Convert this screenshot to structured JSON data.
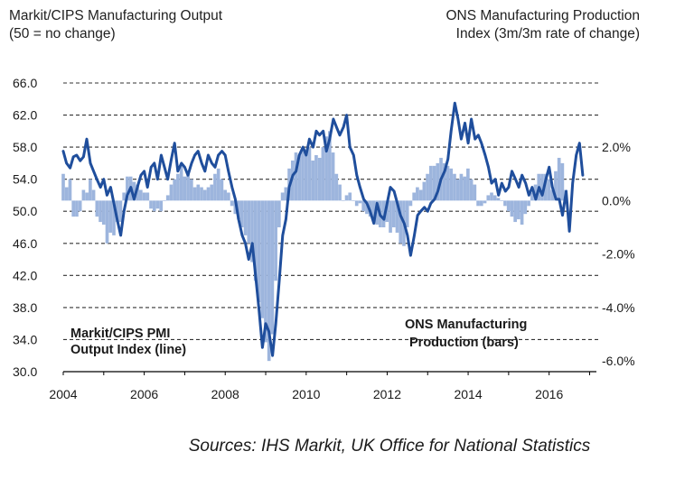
{
  "header": {
    "left_line1": "Markit/CIPS Manufacturing Output",
    "left_line2": "(50 = no change)",
    "right_line1": "ONS Manufacturing Production",
    "right_line2": "Index (3m/3m rate of change)"
  },
  "source": "Sources: IHS Markit, UK Office for National Statistics",
  "chart_data": {
    "type": "bar+line",
    "title": "Markit/CIPS Manufacturing Output vs ONS Manufacturing Production",
    "x_range": [
      2004,
      2016.9
    ],
    "x_ticks": [
      "2004",
      "2006",
      "2008",
      "2010",
      "2012",
      "2014",
      "2016"
    ],
    "y_left": {
      "label": "Markit/CIPS Manufacturing Output (50 = no change)",
      "range": [
        30,
        66
      ],
      "ticks": [
        "66.0",
        "62.0",
        "58.0",
        "54.0",
        "50.0",
        "46.0",
        "42.0",
        "38.0",
        "34.0",
        "30.0"
      ]
    },
    "y_right": {
      "label": "ONS Manufacturing Production Index (3m/3m rate of change)",
      "range": [
        -6.4,
        4.4
      ],
      "ticks": [
        "2.0%",
        "0.0%",
        "-2.0%",
        "-4.0%",
        "-6.0%"
      ]
    },
    "grid": "dashed horizontal",
    "annotations": {
      "line_label_1": "Markit/CIPS PMI",
      "line_label_2": "Output Index (line)",
      "bars_label_1": "ONS Manufacturing",
      "bars_label_2": "Production (bars)"
    },
    "series": [
      {
        "name": "Markit/CIPS PMI Output Index",
        "kind": "line",
        "axis": "left",
        "color": "#1f4e9c",
        "points": [
          [
            2004.0,
            57.5
          ],
          [
            2004.08,
            56.0
          ],
          [
            2004.17,
            55.4
          ],
          [
            2004.25,
            56.8
          ],
          [
            2004.33,
            57.0
          ],
          [
            2004.42,
            56.3
          ],
          [
            2004.5,
            56.8
          ],
          [
            2004.58,
            59.0
          ],
          [
            2004.67,
            56.0
          ],
          [
            2004.75,
            55.0
          ],
          [
            2004.83,
            54.0
          ],
          [
            2004.92,
            53.0
          ],
          [
            2005.0,
            54.0
          ],
          [
            2005.08,
            52.0
          ],
          [
            2005.17,
            53.0
          ],
          [
            2005.25,
            51.0
          ],
          [
            2005.33,
            49.0
          ],
          [
            2005.42,
            47.0
          ],
          [
            2005.5,
            50.0
          ],
          [
            2005.58,
            52.0
          ],
          [
            2005.67,
            53.0
          ],
          [
            2005.75,
            51.5
          ],
          [
            2005.83,
            53.0
          ],
          [
            2005.92,
            54.5
          ],
          [
            2006.0,
            55.0
          ],
          [
            2006.08,
            53.0
          ],
          [
            2006.17,
            55.5
          ],
          [
            2006.25,
            56.0
          ],
          [
            2006.33,
            54.0
          ],
          [
            2006.42,
            57.0
          ],
          [
            2006.5,
            55.5
          ],
          [
            2006.58,
            54.0
          ],
          [
            2006.67,
            56.5
          ],
          [
            2006.75,
            58.5
          ],
          [
            2006.83,
            55.0
          ],
          [
            2006.92,
            56.0
          ],
          [
            2007.0,
            55.5
          ],
          [
            2007.08,
            54.5
          ],
          [
            2007.17,
            56.0
          ],
          [
            2007.25,
            57.0
          ],
          [
            2007.33,
            57.5
          ],
          [
            2007.42,
            56.0
          ],
          [
            2007.5,
            55.0
          ],
          [
            2007.58,
            57.0
          ],
          [
            2007.67,
            56.0
          ],
          [
            2007.75,
            55.5
          ],
          [
            2007.83,
            57.0
          ],
          [
            2007.92,
            57.5
          ],
          [
            2008.0,
            57.0
          ],
          [
            2008.08,
            55.0
          ],
          [
            2008.17,
            53.0
          ],
          [
            2008.25,
            51.5
          ],
          [
            2008.33,
            49.0
          ],
          [
            2008.42,
            47.0
          ],
          [
            2008.5,
            46.0
          ],
          [
            2008.58,
            44.0
          ],
          [
            2008.67,
            46.0
          ],
          [
            2008.75,
            42.0
          ],
          [
            2008.83,
            38.0
          ],
          [
            2008.92,
            33.0
          ],
          [
            2009.0,
            36.0
          ],
          [
            2009.08,
            35.0
          ],
          [
            2009.17,
            32.0
          ],
          [
            2009.25,
            36.0
          ],
          [
            2009.33,
            41.0
          ],
          [
            2009.42,
            47.0
          ],
          [
            2009.5,
            49.0
          ],
          [
            2009.58,
            53.0
          ],
          [
            2009.67,
            54.5
          ],
          [
            2009.75,
            55.0
          ],
          [
            2009.83,
            57.0
          ],
          [
            2009.92,
            58.0
          ],
          [
            2010.0,
            57.0
          ],
          [
            2010.08,
            59.0
          ],
          [
            2010.17,
            58.0
          ],
          [
            2010.25,
            60.0
          ],
          [
            2010.33,
            59.5
          ],
          [
            2010.42,
            60.0
          ],
          [
            2010.5,
            57.5
          ],
          [
            2010.58,
            59.0
          ],
          [
            2010.67,
            61.5
          ],
          [
            2010.75,
            60.5
          ],
          [
            2010.83,
            59.5
          ],
          [
            2010.92,
            60.5
          ],
          [
            2011.0,
            62.0
          ],
          [
            2011.08,
            58.0
          ],
          [
            2011.17,
            57.0
          ],
          [
            2011.25,
            54.5
          ],
          [
            2011.33,
            53.0
          ],
          [
            2011.42,
            51.5
          ],
          [
            2011.5,
            51.0
          ],
          [
            2011.58,
            50.0
          ],
          [
            2011.67,
            48.5
          ],
          [
            2011.75,
            51.0
          ],
          [
            2011.83,
            49.5
          ],
          [
            2011.92,
            49.0
          ],
          [
            2012.0,
            51.0
          ],
          [
            2012.08,
            53.0
          ],
          [
            2012.17,
            52.5
          ],
          [
            2012.25,
            51.0
          ],
          [
            2012.33,
            49.5
          ],
          [
            2012.42,
            48.5
          ],
          [
            2012.5,
            47.0
          ],
          [
            2012.58,
            44.5
          ],
          [
            2012.67,
            47.0
          ],
          [
            2012.75,
            49.5
          ],
          [
            2012.83,
            50.0
          ],
          [
            2012.92,
            50.5
          ],
          [
            2013.0,
            50.0
          ],
          [
            2013.08,
            51.0
          ],
          [
            2013.17,
            51.5
          ],
          [
            2013.25,
            52.5
          ],
          [
            2013.33,
            54.0
          ],
          [
            2013.42,
            55.0
          ],
          [
            2013.5,
            56.5
          ],
          [
            2013.58,
            60.0
          ],
          [
            2013.67,
            63.5
          ],
          [
            2013.75,
            61.5
          ],
          [
            2013.83,
            59.0
          ],
          [
            2013.92,
            61.0
          ],
          [
            2014.0,
            58.5
          ],
          [
            2014.08,
            61.5
          ],
          [
            2014.17,
            59.0
          ],
          [
            2014.25,
            59.5
          ],
          [
            2014.33,
            58.5
          ],
          [
            2014.42,
            57.0
          ],
          [
            2014.5,
            55.5
          ],
          [
            2014.58,
            53.5
          ],
          [
            2014.67,
            54.0
          ],
          [
            2014.75,
            52.0
          ],
          [
            2014.83,
            53.5
          ],
          [
            2014.92,
            52.5
          ],
          [
            2015.0,
            53.0
          ],
          [
            2015.08,
            55.0
          ],
          [
            2015.17,
            54.0
          ],
          [
            2015.25,
            53.0
          ],
          [
            2015.33,
            54.5
          ],
          [
            2015.42,
            53.5
          ],
          [
            2015.5,
            52.0
          ],
          [
            2015.58,
            53.0
          ],
          [
            2015.67,
            51.5
          ],
          [
            2015.75,
            53.0
          ],
          [
            2015.83,
            52.0
          ],
          [
            2015.92,
            54.0
          ],
          [
            2016.0,
            55.5
          ],
          [
            2016.08,
            53.0
          ],
          [
            2016.17,
            51.5
          ],
          [
            2016.25,
            51.5
          ],
          [
            2016.33,
            49.5
          ],
          [
            2016.42,
            52.5
          ],
          [
            2016.5,
            47.5
          ],
          [
            2016.58,
            53.5
          ],
          [
            2016.67,
            57.0
          ],
          [
            2016.75,
            58.5
          ],
          [
            2016.83,
            54.5
          ]
        ]
      },
      {
        "name": "ONS Manufacturing Production (3m/3m %)",
        "kind": "bars",
        "axis": "right",
        "color": "#9db5dd",
        "x_start": 2004.0,
        "step": 0.0833,
        "values": [
          1.0,
          0.5,
          0.8,
          -0.6,
          -0.6,
          -0.4,
          0.4,
          0.3,
          0.8,
          0.4,
          -0.6,
          -0.8,
          -0.9,
          -1.6,
          -1.2,
          -1.3,
          -0.8,
          -0.8,
          0.3,
          0.9,
          0.9,
          0.7,
          0.6,
          0.4,
          0.3,
          0.3,
          -0.3,
          -0.4,
          -0.3,
          -0.4,
          0.0,
          0.2,
          0.6,
          0.8,
          1.0,
          1.3,
          0.9,
          1.0,
          0.8,
          0.5,
          0.6,
          0.5,
          0.4,
          0.5,
          0.6,
          1.0,
          1.2,
          0.8,
          0.4,
          0.3,
          -0.2,
          -0.5,
          -0.7,
          -1.0,
          -1.3,
          -1.6,
          -2.3,
          -3.0,
          -3.8,
          -4.4,
          -5.3,
          -6.0,
          -5.0,
          -3.0,
          -1.0,
          0.3,
          0.5,
          1.2,
          1.5,
          1.8,
          1.7,
          2.0,
          1.8,
          2.0,
          1.5,
          1.7,
          1.6,
          2.0,
          2.4,
          2.6,
          1.8,
          1.0,
          0.6,
          0.0,
          0.2,
          0.3,
          0.0,
          -0.2,
          -0.1,
          -0.4,
          -0.5,
          -0.6,
          -0.8,
          -0.9,
          -1.0,
          -1.0,
          -0.8,
          -1.2,
          -1.0,
          -1.2,
          -1.6,
          -1.7,
          -1.0,
          -0.2,
          0.3,
          0.5,
          0.4,
          0.7,
          1.0,
          1.3,
          1.3,
          1.4,
          1.6,
          1.4,
          1.3,
          1.2,
          1.0,
          0.8,
          1.0,
          0.9,
          1.2,
          0.8,
          0.6,
          -0.2,
          -0.2,
          -0.1,
          0.2,
          0.3,
          0.2,
          0.1,
          0.0,
          -0.2,
          -0.4,
          -0.6,
          -0.8,
          -0.7,
          -0.9,
          -0.5,
          -0.2,
          0.3,
          0.6,
          1.0,
          1.0,
          1.0,
          0.8,
          0.4,
          1.1,
          1.6,
          1.4,
          0.4
        ]
      }
    ]
  }
}
